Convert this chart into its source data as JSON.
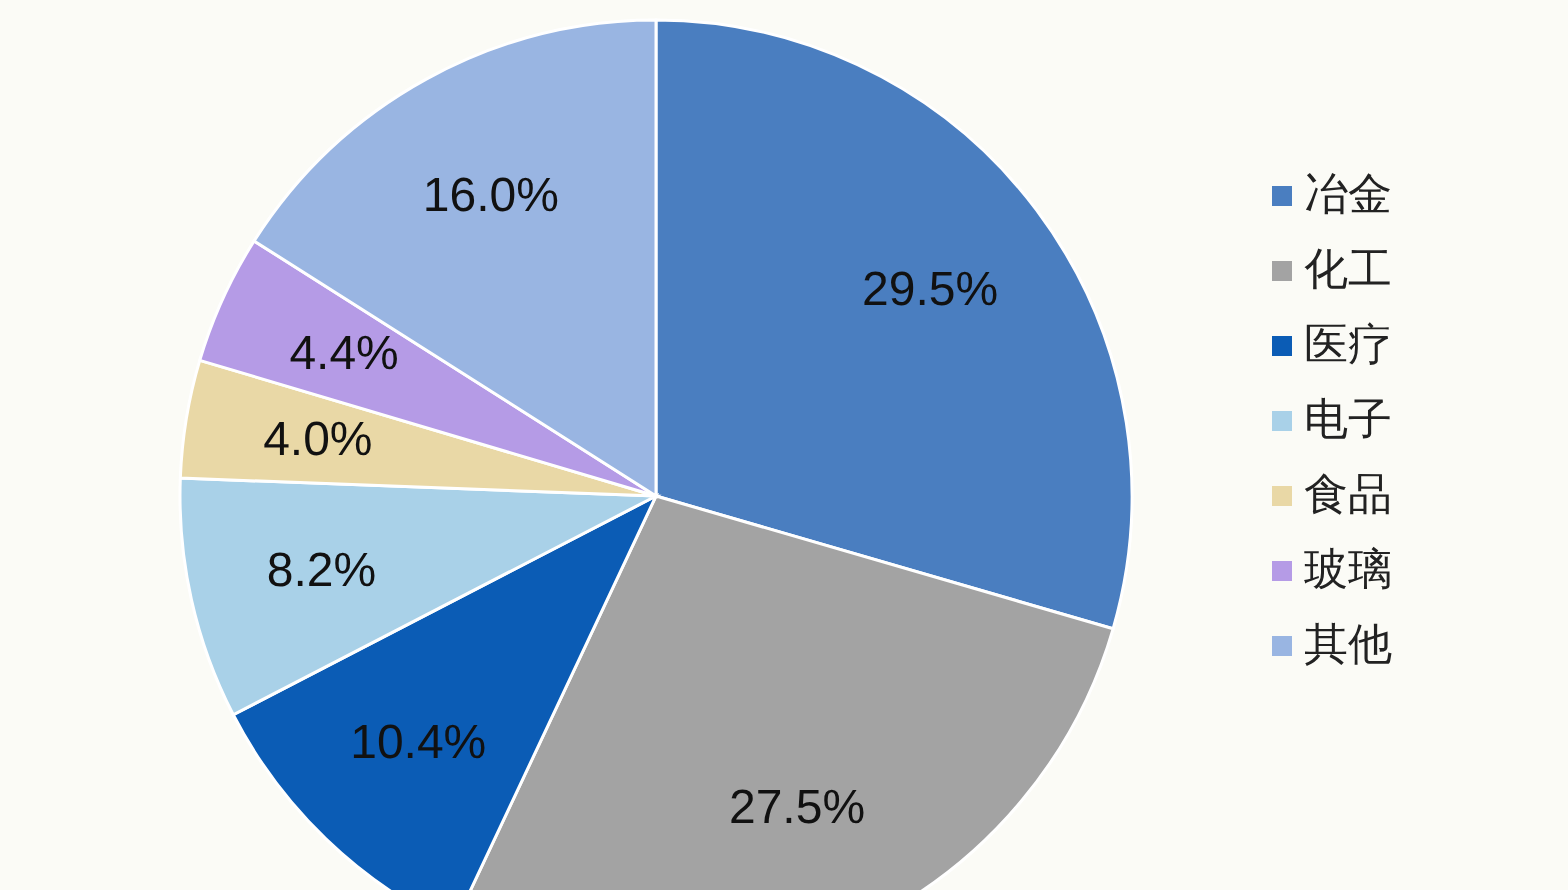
{
  "chart_data": {
    "type": "pie",
    "categories": [
      "冶金",
      "化工",
      "医疗",
      "电子",
      "食品",
      "玻璃",
      "其他"
    ],
    "values": [
      29.5,
      27.5,
      10.4,
      8.2,
      4.0,
      4.4,
      16.0
    ],
    "colors": [
      "#4a7ec0",
      "#a3a3a3",
      "#0b5cb5",
      "#a9d1e8",
      "#e9d8a6",
      "#b59be6",
      "#99b5e2"
    ],
    "value_labels": [
      "29.5%",
      "27.5%",
      "10.4%",
      "8.2%",
      "4.0%",
      "4.4%",
      "16.0%"
    ],
    "legend": "right"
  }
}
